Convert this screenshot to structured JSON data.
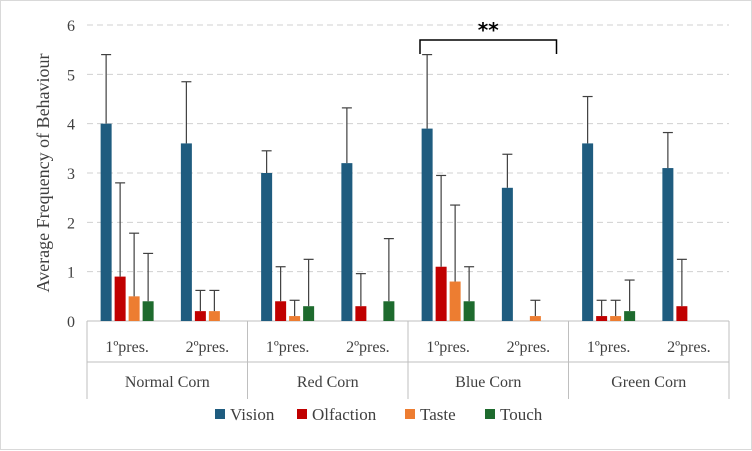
{
  "colors": {
    "Vision": "#1f5c7f",
    "Olfaction": "#c00000",
    "Taste": "#ed7d31",
    "Touch": "#1e6b2e",
    "grid": "#d0d0d0",
    "axis": "#bfbfbf",
    "errorbar": "#404040"
  },
  "chart_data": {
    "type": "bar",
    "xlabel": "",
    "ylabel": "Average Frequency of Behaviour",
    "ylim": [
      0,
      6
    ],
    "yticks": [
      "0",
      "1",
      "2",
      "3",
      "4",
      "5",
      "6"
    ],
    "grid": true,
    "legend_position": "bottom",
    "groups": [
      "Normal Corn",
      "Red Corn",
      "Blue Corn",
      "Green Corn"
    ],
    "subcategories": [
      "1ºpres.",
      "2ºpres."
    ],
    "categories": [
      "Normal Corn 1ºpres.",
      "Normal Corn 2ºpres.",
      "Red Corn 1ºpres.",
      "Red Corn 2ºpres.",
      "Blue Corn 1ºpres.",
      "Blue Corn 2ºpres.",
      "Green Corn 1ºpres.",
      "Green Corn 2ºpres."
    ],
    "series": [
      {
        "name": "Vision",
        "values": [
          4.0,
          3.6,
          3.0,
          3.2,
          3.9,
          2.7,
          3.6,
          3.1
        ],
        "errors": [
          1.4,
          1.25,
          0.45,
          1.12,
          1.5,
          0.68,
          0.95,
          0.72
        ]
      },
      {
        "name": "Olfaction",
        "values": [
          0.9,
          0.2,
          0.4,
          0.3,
          1.1,
          0.0,
          0.1,
          0.3
        ],
        "errors": [
          1.9,
          0.42,
          0.7,
          0.66,
          1.85,
          0.0,
          0.32,
          0.95
        ]
      },
      {
        "name": "Taste",
        "values": [
          0.5,
          0.2,
          0.1,
          0.0,
          0.8,
          0.1,
          0.1,
          0.0
        ],
        "errors": [
          1.28,
          0.42,
          0.32,
          0.0,
          1.55,
          0.32,
          0.32,
          0.0
        ]
      },
      {
        "name": "Touch",
        "values": [
          0.4,
          0.0,
          0.3,
          0.4,
          0.4,
          0.0,
          0.2,
          0.0
        ],
        "errors": [
          0.97,
          0.0,
          0.95,
          1.27,
          0.7,
          0.0,
          0.63,
          0.0
        ]
      }
    ],
    "annotations": [
      {
        "text": "**",
        "from": "Blue Corn 1ºpres.",
        "to": "Blue Corn 2ºpres."
      }
    ]
  }
}
